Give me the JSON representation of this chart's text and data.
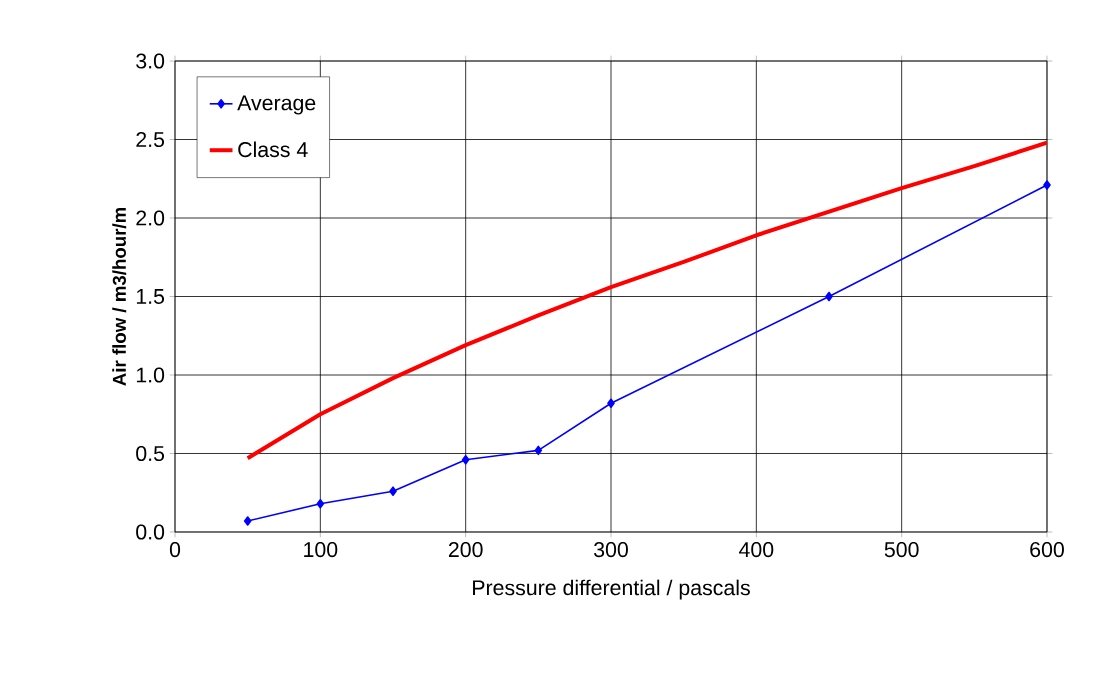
{
  "chart_data": {
    "type": "line",
    "xlabel": "Pressure differential / pascals",
    "ylabel": "Air flow / m3/hour/m",
    "xlim": [
      0,
      600
    ],
    "xticks": [
      0,
      100,
      200,
      300,
      400,
      500,
      600
    ],
    "ylim": [
      0,
      3
    ],
    "yticks": [
      {
        "value": 0,
        "label": "0.0"
      },
      {
        "value": 0.5,
        "label": "0.5"
      },
      {
        "value": 1,
        "label": "1.0"
      },
      {
        "value": 1.5,
        "label": "1.5"
      },
      {
        "value": 2,
        "label": "2.0"
      },
      {
        "value": 2.5,
        "label": "2.5"
      },
      {
        "value": 3,
        "label": "3.0"
      }
    ],
    "grid": true,
    "legend": "top left",
    "series": [
      {
        "name": "Average",
        "color": "#0000ff",
        "marker": "diamond",
        "x": [
          50,
          100,
          150,
          200,
          250,
          300,
          450,
          600
        ],
        "values": [
          0.07,
          0.18,
          0.26,
          0.46,
          0.52,
          0.82,
          1.5,
          2.21
        ]
      },
      {
        "name": "Class 4",
        "color": "#ff0000",
        "marker": "none",
        "x": [
          50,
          100,
          150,
          200,
          250,
          300,
          350,
          400,
          450,
          500,
          550,
          600
        ],
        "values": [
          0.47,
          0.75,
          0.98,
          1.19,
          1.38,
          1.56,
          1.72,
          1.89,
          2.04,
          2.19,
          2.33,
          2.48
        ]
      }
    ]
  }
}
